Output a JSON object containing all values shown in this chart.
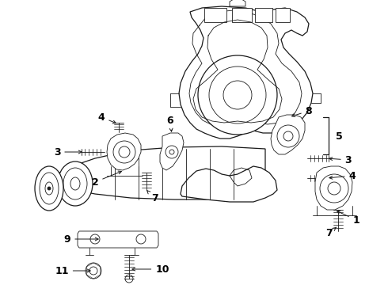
{
  "bg_color": "#ffffff",
  "line_color": "#1a1a1a",
  "label_color": "#000000",
  "fig_width": 4.9,
  "fig_height": 3.6,
  "dpi": 100,
  "font_size": 9,
  "arrow_color": "#1a1a1a",
  "lw_main": 0.9,
  "lw_thin": 0.6,
  "lw_thick": 1.2
}
